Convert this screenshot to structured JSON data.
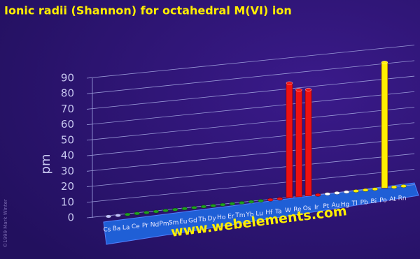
{
  "chart_data": {
    "type": "bar3d",
    "title": "Ionic radii (Shannon) for octahedral M(VI) ion",
    "y_label": "pm",
    "watermark": "www.webelements.com",
    "copyright": "©1999 Mark Winter",
    "categories": [
      "Cs",
      "Ba",
      "La",
      "Ce",
      "Pr",
      "Nd",
      "Pm",
      "Sm",
      "Eu",
      "Gd",
      "Tb",
      "Dy",
      "Ho",
      "Er",
      "Tm",
      "Yb",
      "Lu",
      "Hf",
      "Ta",
      "W",
      "Re",
      "Os",
      "Ir",
      "Pt",
      "Au",
      "Hg",
      "Tl",
      "Pb",
      "Bi",
      "Po",
      "At",
      "Rn"
    ],
    "series": [
      {
        "name": "M(VI)",
        "values": [
          null,
          null,
          null,
          null,
          null,
          null,
          null,
          null,
          null,
          null,
          null,
          null,
          null,
          null,
          null,
          null,
          null,
          null,
          null,
          74,
          69,
          68.5,
          null,
          null,
          null,
          null,
          null,
          null,
          null,
          81,
          null,
          null
        ]
      }
    ],
    "point_colors": [
      "#c0c0ff",
      "#c0c0ff",
      "#1ea01e",
      "#1ea01e",
      "#1ea01e",
      "#1ea01e",
      "#1ea01e",
      "#1ea01e",
      "#1ea01e",
      "#1ea01e",
      "#1ea01e",
      "#1ea01e",
      "#1ea01e",
      "#1ea01e",
      "#1ea01e",
      "#1ea01e",
      "#1ea01e",
      "#ee1111",
      "#ee1111",
      "#ee1111",
      "#ee1111",
      "#ee1111",
      "#ee1111",
      "#ffffff",
      "#ffffff",
      "#ffffff",
      "#ffee00",
      "#ffee00",
      "#ffee00",
      "#ffee00",
      "#ffee00",
      "#ffee00"
    ],
    "ylim": [
      0,
      90
    ],
    "yticks": [
      0,
      10,
      20,
      30,
      40,
      50,
      60,
      70,
      80,
      90
    ],
    "grid": true
  }
}
